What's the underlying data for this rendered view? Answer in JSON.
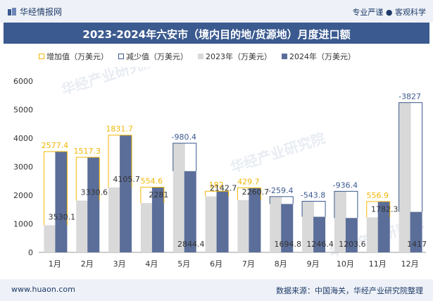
{
  "header": {
    "brand": "华经情报网",
    "tagline": "专业严谨 ● 客观科学"
  },
  "footer": {
    "website": "www.huaon.com",
    "source": "数据来源：中国海关，华经产业研究院整理"
  },
  "watermark": "华经产业研究院",
  "colors": {
    "increase": "#f2b705",
    "decrease": "#3b5a8f",
    "y2023": "#d9d9d9",
    "y2024": "#5b6e9a",
    "title_bg": "#3b5a8f"
  },
  "chart_data": {
    "type": "bar",
    "title": "2023-2024年六安市（境内目的地/货源地）月度进口额",
    "categories": [
      "1月",
      "2月",
      "3月",
      "4月",
      "5月",
      "6月",
      "7月",
      "8月",
      "9月",
      "10月",
      "11月",
      "12月"
    ],
    "legend": [
      "增加值（万美元）",
      "减少值（万美元）",
      "2023年（万美元）",
      "2024年（万美元）"
    ],
    "series": [
      {
        "name": "2023年（万美元）",
        "values": [
          952.7,
          1813.3,
          2274.0,
          1726.4,
          3824.8,
          1960.7,
          1831.0,
          1954.1,
          1790.2,
          2140.0,
          1225.4,
          5244.0
        ]
      },
      {
        "name": "2024年（万美元）",
        "values": [
          3530.1,
          3330.6,
          4105.7,
          2281,
          2844.4,
          2142.7,
          2260.7,
          1694.8,
          1246.4,
          1203.6,
          1782.3,
          1417
        ]
      }
    ],
    "value_labels_2024": [
      "3530.1",
      "3330.6",
      "4105.7",
      "2281",
      "2844.4",
      "2142.7",
      "2260.7",
      "1694.8",
      "1246.4",
      "1203.6",
      "1782.3",
      "1417"
    ],
    "changes": [
      {
        "label": "2577.4",
        "dir": "up"
      },
      {
        "label": "1517.3",
        "dir": "up"
      },
      {
        "label": "1831.7",
        "dir": "up"
      },
      {
        "label": "554.6",
        "dir": "up"
      },
      {
        "label": "-980.4",
        "dir": "down"
      },
      {
        "label": "182",
        "dir": "up"
      },
      {
        "label": "429.7",
        "dir": "up"
      },
      {
        "label": "-259.4",
        "dir": "down"
      },
      {
        "label": "-543.8",
        "dir": "down"
      },
      {
        "label": "-936.4",
        "dir": "down"
      },
      {
        "label": "556.9",
        "dir": "up"
      },
      {
        "label": "-3827",
        "dir": "down"
      }
    ],
    "yticks": [
      "0",
      "1000",
      "2000",
      "3000",
      "4000",
      "5000",
      "6000"
    ],
    "ylim": [
      0,
      6000
    ],
    "grid": false
  }
}
